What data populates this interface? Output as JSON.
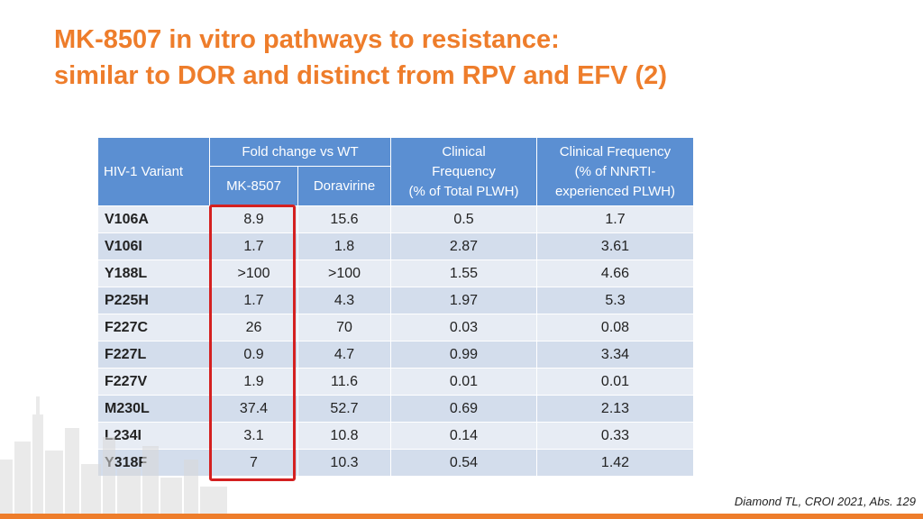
{
  "title": {
    "line1": "MK-8507 in vitro pathways to resistance:",
    "line2": "similar to DOR and distinct from RPV and EFV (2)"
  },
  "table": {
    "headers": {
      "variant": "HIV-1 Variant",
      "fold_change": "Fold change vs WT",
      "mk8507": "MK-8507",
      "doravirine": "Doravirine",
      "clinical_total_1": "Clinical",
      "clinical_total_2": "Frequency",
      "clinical_total_3": "(% of Total PLWH)",
      "clinical_nnrti_1": "Clinical Frequency",
      "clinical_nnrti_2": "(% of NNRTI-",
      "clinical_nnrti_3": "experienced PLWH)"
    },
    "rows": [
      {
        "variant": "V106A",
        "mk8507": "8.9",
        "doravirine": "15.6",
        "freq_total": "0.5",
        "freq_nnrti": "1.7"
      },
      {
        "variant": "V106I",
        "mk8507": "1.7",
        "doravirine": "1.8",
        "freq_total": "2.87",
        "freq_nnrti": "3.61"
      },
      {
        "variant": "Y188L",
        "mk8507": ">100",
        "doravirine": ">100",
        "freq_total": "1.55",
        "freq_nnrti": "4.66"
      },
      {
        "variant": "P225H",
        "mk8507": "1.7",
        "doravirine": "4.3",
        "freq_total": "1.97",
        "freq_nnrti": "5.3"
      },
      {
        "variant": "F227C",
        "mk8507": "26",
        "doravirine": "70",
        "freq_total": "0.03",
        "freq_nnrti": "0.08"
      },
      {
        "variant": "F227L",
        "mk8507": "0.9",
        "doravirine": "4.7",
        "freq_total": "0.99",
        "freq_nnrti": "3.34"
      },
      {
        "variant": "F227V",
        "mk8507": "1.9",
        "doravirine": "11.6",
        "freq_total": "0.01",
        "freq_nnrti": "0.01"
      },
      {
        "variant": "M230L",
        "mk8507": "37.4",
        "doravirine": "52.7",
        "freq_total": "0.69",
        "freq_nnrti": "2.13"
      },
      {
        "variant": "L234I",
        "mk8507": "3.1",
        "doravirine": "10.8",
        "freq_total": "0.14",
        "freq_nnrti": "0.33"
      },
      {
        "variant": "Y318F",
        "mk8507": "7",
        "doravirine": "10.3",
        "freq_total": "0.54",
        "freq_nnrti": "1.42"
      }
    ]
  },
  "citation": "Diamond TL, CROI 2021, Abs. 129",
  "colors": {
    "accent": "#EE7D2B",
    "header_bg": "#5B8FD2",
    "row_light": "#E7ECF4",
    "row_dark": "#D3DDEC",
    "highlight": "#D42020"
  }
}
